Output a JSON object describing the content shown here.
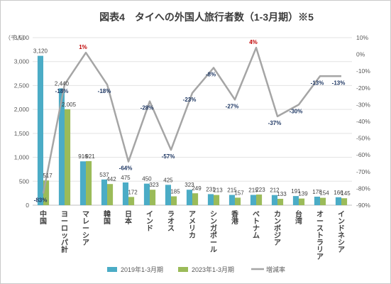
{
  "chart_data": {
    "type": "bar",
    "title": "図表4　タイへの外国人旅行者数（1-3月期）※5",
    "left_unit": "（千人）",
    "categories": [
      "中国",
      "ヨーロッパ計",
      "マレーシア",
      "韓国",
      "日本",
      "インド",
      "ラオス",
      "アメリカ",
      "シンガポール",
      "香港",
      "ベトナム",
      "カンボジア",
      "台湾",
      "オーストラリア",
      "インドネシア"
    ],
    "series": [
      {
        "name": "2019年1-3月期",
        "type": "bar",
        "axis": "left",
        "color": "#4bacc6",
        "values": [
          3120,
          2440,
          916,
          537,
          475,
          450,
          425,
          323,
          231,
          215,
          215,
          212,
          191,
          178,
          166
        ]
      },
      {
        "name": "2023年1-3月期",
        "type": "bar",
        "axis": "left",
        "color": "#9bbb59",
        "values": [
          517,
          2005,
          921,
          442,
          172,
          323,
          185,
          249,
          213,
          157,
          223,
          133,
          139,
          154,
          145
        ]
      },
      {
        "name": "増減率",
        "type": "line",
        "axis": "right",
        "color": "#a5a5a5",
        "values": [
          -83,
          -18,
          1,
          -18,
          -64,
          -28,
          -57,
          -23,
          -8,
          -27,
          4,
          -37,
          -30,
          -13,
          -13
        ]
      }
    ],
    "value_labels_2019": [
      "3,120",
      "2,440",
      "916",
      "537",
      "475",
      "450",
      "425",
      "323",
      "231",
      "215",
      "215",
      "212",
      "191",
      "178",
      "166"
    ],
    "value_labels_2023": [
      "517",
      "2,005",
      "921",
      "442",
      "172",
      "323",
      "185",
      "249",
      "213",
      "157",
      "223",
      "133",
      "139",
      "154",
      "145"
    ],
    "rate_labels": [
      "-83%",
      "-18%",
      "1%",
      "-18%",
      "-64%",
      "-28%",
      "-57%",
      "-23%",
      "-8%",
      "-27%",
      "4%",
      "-37%",
      "-30%",
      "-13%",
      "-13%"
    ],
    "left_axis": {
      "min": 0,
      "max": 3500,
      "step": 500,
      "ticks": [
        "0",
        "500",
        "1,000",
        "1,500",
        "2,000",
        "2,500",
        "3,000",
        "3,500"
      ]
    },
    "right_axis": {
      "min": -90,
      "max": 10,
      "step": 10,
      "ticks": [
        "-90%",
        "-80%",
        "-70%",
        "-60%",
        "-50%",
        "-40%",
        "-30%",
        "-20%",
        "-10%",
        "0%",
        "10%"
      ]
    },
    "grid": true,
    "legend_position": "bottom"
  }
}
